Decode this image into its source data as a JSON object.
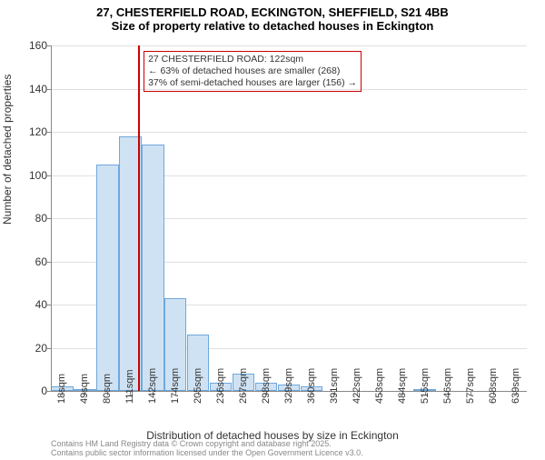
{
  "title_main": "27, CHESTERFIELD ROAD, ECKINGTON, SHEFFIELD, S21 4BB",
  "title_sub": "Size of property relative to detached houses in Eckington",
  "chart": {
    "type": "histogram",
    "y_axis_label": "Number of detached properties",
    "x_axis_label": "Distribution of detached houses by size in Eckington",
    "ylim": [
      0,
      160
    ],
    "yticks": [
      0,
      20,
      40,
      60,
      80,
      100,
      120,
      140,
      160
    ],
    "bar_fill": "#cfe2f3",
    "bar_border": "#6fa8dc",
    "grid_color": "#e0e0e0",
    "axis_color": "#888888",
    "background_color": "#ffffff",
    "categories": [
      "18sqm",
      "49sqm",
      "80sqm",
      "111sqm",
      "142sqm",
      "174sqm",
      "205sqm",
      "236sqm",
      "267sqm",
      "298sqm",
      "329sqm",
      "360sqm",
      "391sqm",
      "422sqm",
      "453sqm",
      "484sqm",
      "515sqm",
      "546sqm",
      "577sqm",
      "608sqm",
      "639sqm"
    ],
    "values": [
      2,
      1,
      105,
      118,
      114,
      43,
      26,
      4,
      8,
      4,
      3,
      2,
      0,
      0,
      0,
      0,
      1,
      0,
      0,
      0,
      0
    ],
    "marker": {
      "position_index": 3.35,
      "color": "#cc0000",
      "line1": "27 CHESTERFIELD ROAD: 122sqm",
      "line2": "← 63% of detached houses are smaller (268)",
      "line3": "37% of semi-detached houses are larger (156) →"
    },
    "title_fontsize": 13,
    "label_fontsize": 12,
    "tick_fontsize": 11
  },
  "attribution": {
    "line1": "Contains HM Land Registry data © Crown copyright and database right 2025.",
    "line2": "Contains public sector information licensed under the Open Government Licence v3.0."
  }
}
